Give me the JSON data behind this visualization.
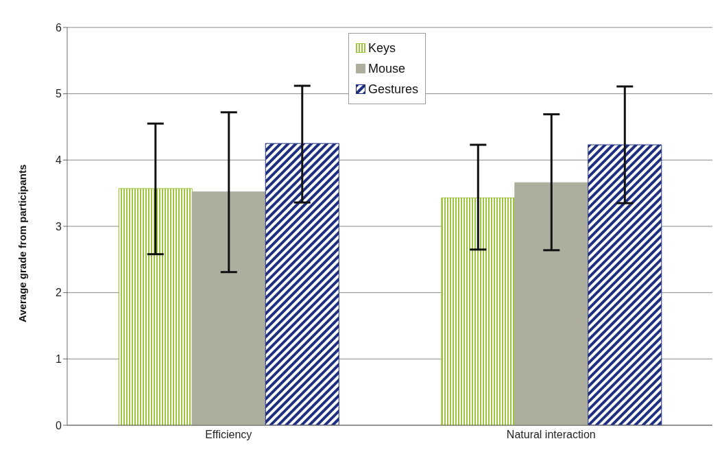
{
  "chart_data": {
    "type": "bar",
    "ylabel": "Average grade from participants",
    "categories": [
      "Efficiency",
      "Natural interaction"
    ],
    "series": [
      {
        "name": "Keys",
        "color": "#9cc43c",
        "values": [
          3.57,
          3.43
        ],
        "errors": [
          [
            2.58,
            4.55
          ],
          [
            2.65,
            4.23
          ]
        ]
      },
      {
        "name": "Mouse",
        "color": "#aeae9e",
        "values": [
          3.52,
          3.66
        ],
        "errors": [
          [
            2.31,
            4.72
          ],
          [
            2.64,
            4.69
          ]
        ]
      },
      {
        "name": "Gestures",
        "color": "#1f2f80",
        "values": [
          4.25,
          4.23
        ],
        "errors": [
          [
            3.36,
            5.12
          ],
          [
            3.35,
            5.11
          ]
        ]
      }
    ],
    "ylim": [
      0,
      6
    ],
    "yticks": [
      0,
      1,
      2,
      3,
      4,
      5,
      6
    ],
    "grid": "y",
    "legend": "top"
  }
}
